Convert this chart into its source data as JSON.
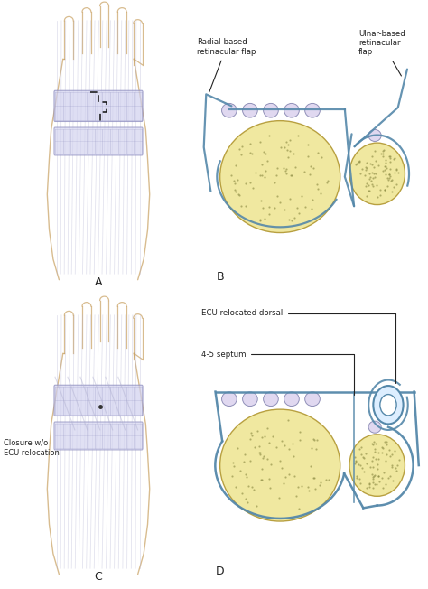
{
  "background_color": "#ffffff",
  "bone_fill": "#f0e8a0",
  "bone_edge": "#b8a040",
  "bone_dot": "#888840",
  "ret_fill": "#d0d0ee",
  "ret_edge": "#8888bb",
  "line_col": "#5588aa",
  "hand_col": "#c8a060",
  "muscle_col": "#b0b0d0",
  "ann_col": "#222222",
  "label_A": "A",
  "label_B": "B",
  "label_C": "C",
  "label_D": "D",
  "text_radial": "Radial-based\nretinacular flap",
  "text_ulnar": "Ulnar-based\nretinacular\nflap",
  "text_closure": "Closure w/o\nECU relocation",
  "text_ecu": "ECU relocated dorsal",
  "text_septum": "4-5 septum"
}
